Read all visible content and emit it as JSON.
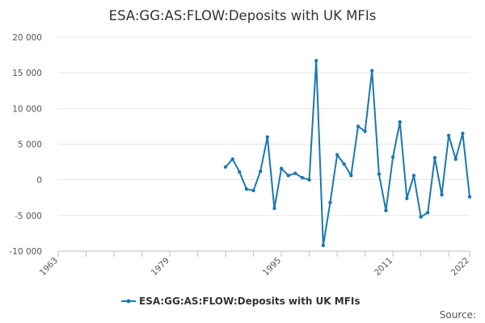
{
  "chart_data": {
    "type": "line",
    "title": "ESA:GG:AS:FLOW:Deposits with UK MFIs",
    "xlabel": "",
    "ylabel": "",
    "xlim": [
      1963,
      2022
    ],
    "ylim": [
      -10000,
      20000
    ],
    "x_ticks": [
      "1963",
      "1979",
      "1995",
      "2011",
      "2022"
    ],
    "y_ticks": [
      "20 000",
      "15 000",
      "10 000",
      "5 000",
      "0",
      "-5 000",
      "-10 000"
    ],
    "y_tick_values": [
      20000,
      15000,
      10000,
      5000,
      0,
      -5000,
      -10000
    ],
    "grid": true,
    "legend_position": "bottom",
    "source_label": "Source:",
    "series": [
      {
        "name": "ESA:GG:AS:FLOW:Deposits with UK MFIs",
        "color": "#1a78b0",
        "x": [
          1987,
          1988,
          1989,
          1990,
          1991,
          1992,
          1993,
          1994,
          1995,
          1996,
          1997,
          1998,
          1999,
          2000,
          2001,
          2002,
          2003,
          2004,
          2005,
          2006,
          2007,
          2008,
          2009,
          2010,
          2011,
          2012,
          2013,
          2014,
          2015,
          2016,
          2017,
          2018,
          2019,
          2020,
          2021,
          2022
        ],
        "values": [
          1800,
          2900,
          1100,
          -1300,
          -1500,
          1200,
          6000,
          -4000,
          1600,
          600,
          900,
          300,
          0,
          16700,
          -9200,
          -3200,
          3500,
          2200,
          600,
          7500,
          6800,
          15300,
          800,
          -4300,
          3200,
          8100,
          -2600,
          600,
          -5200,
          -4600,
          3100,
          -2100,
          6200,
          2900,
          6500,
          -2400
        ]
      }
    ]
  }
}
